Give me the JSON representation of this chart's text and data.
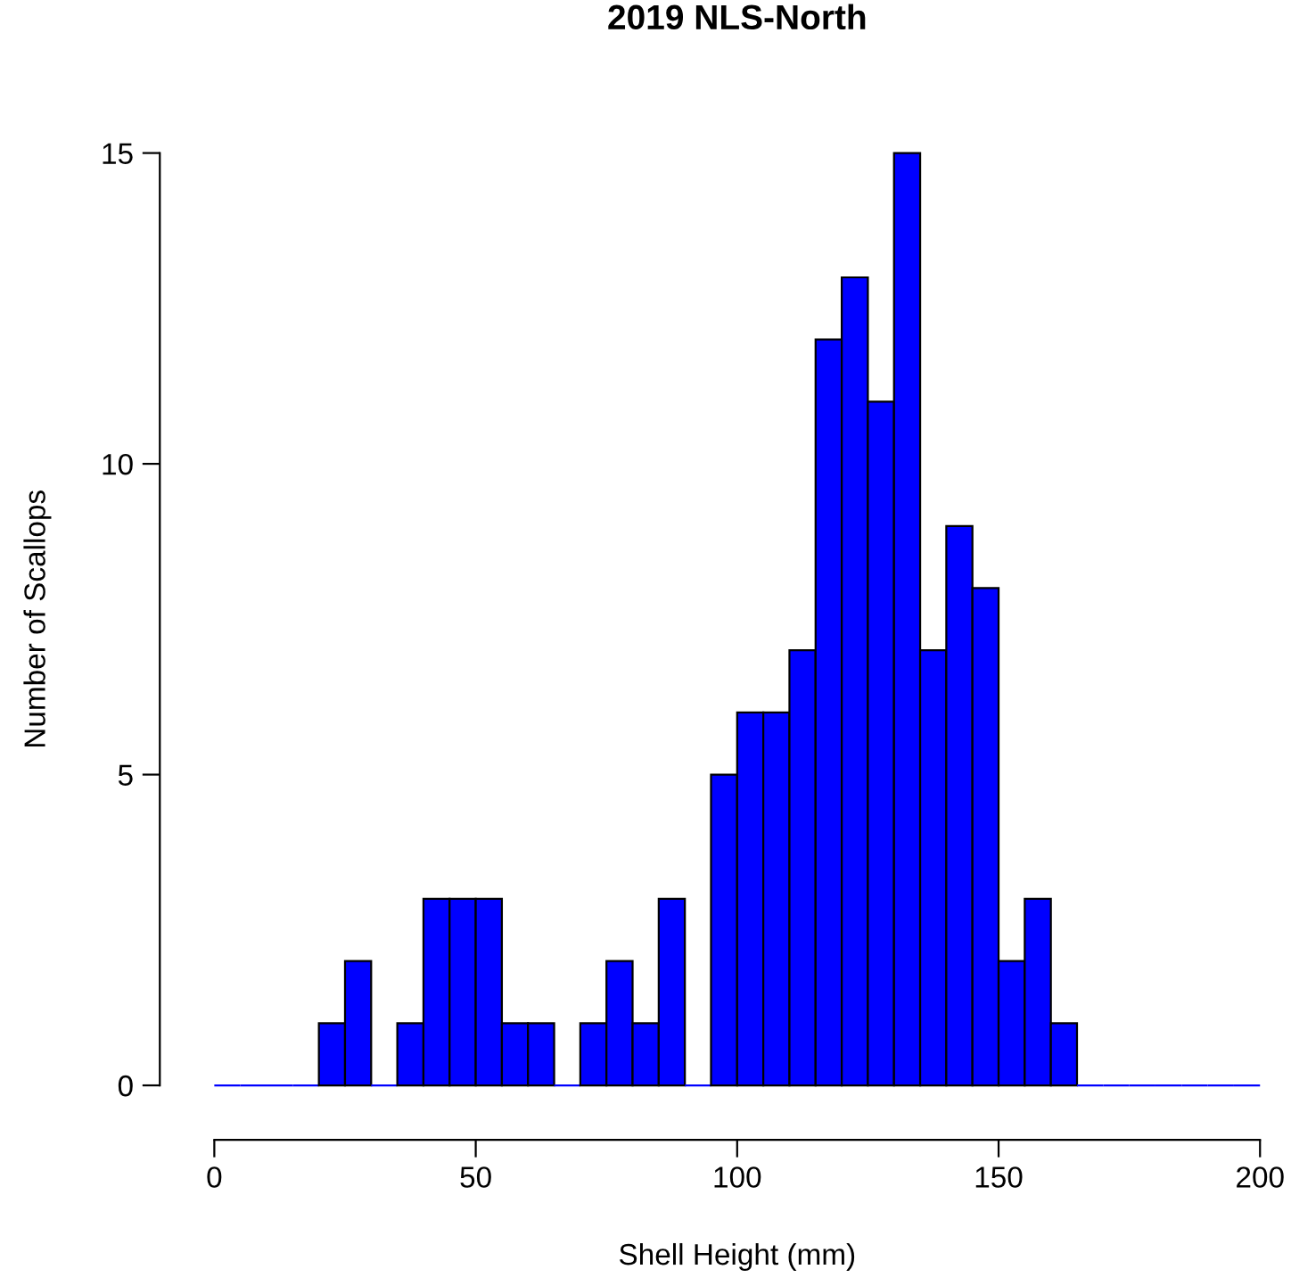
{
  "chart_data": {
    "type": "histogram",
    "title": "2019 NLS-North",
    "xlabel": "Shell Height (mm)",
    "ylabel": "Number of Scallops",
    "bins": [
      0,
      5,
      10,
      15,
      20,
      25,
      30,
      35,
      40,
      45,
      50,
      55,
      60,
      65,
      70,
      75,
      80,
      85,
      90,
      95,
      100,
      105,
      110,
      115,
      120,
      125,
      130,
      135,
      140,
      145,
      150,
      155,
      160,
      165,
      170,
      175,
      180,
      185,
      190,
      195,
      200
    ],
    "values": [
      0,
      0,
      0,
      0,
      1,
      2,
      0,
      1,
      3,
      3,
      3,
      1,
      1,
      0,
      1,
      2,
      1,
      3,
      0,
      5,
      6,
      6,
      7,
      12,
      13,
      11,
      15,
      7,
      9,
      8,
      2,
      3,
      1,
      0,
      0,
      0,
      0,
      0,
      0,
      0
    ],
    "color": "#0000ff",
    "xlim": [
      0,
      200
    ],
    "ylim": [
      0,
      15
    ],
    "xticks": [
      0,
      50,
      100,
      150,
      200
    ],
    "yticks": [
      0,
      5,
      10,
      15
    ],
    "grid": false
  }
}
